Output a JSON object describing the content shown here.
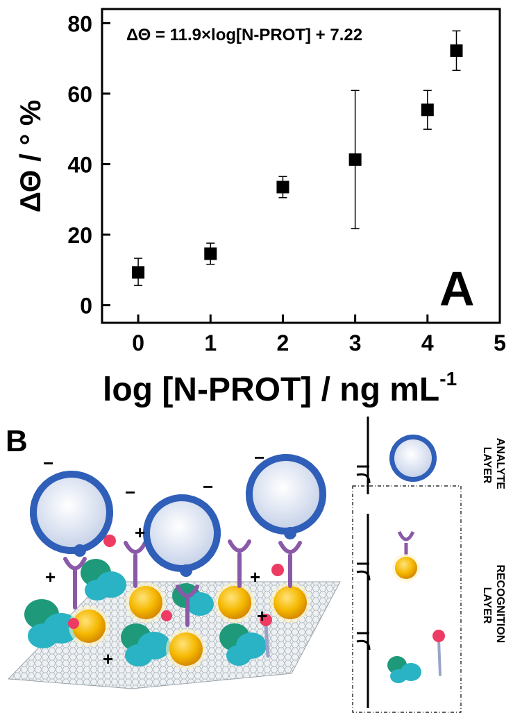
{
  "chart_data": {
    "type": "scatter",
    "x": [
      0,
      1,
      2,
      3,
      4,
      4.4
    ],
    "y": [
      9.3,
      14.6,
      33.5,
      41.3,
      55.4,
      72.2
    ],
    "yerr_low": [
      3.7,
      3.0,
      3.0,
      19.6,
      5.5,
      5.6
    ],
    "yerr_high": [
      4.0,
      3.0,
      3.0,
      19.6,
      5.5,
      5.6
    ],
    "xlim": [
      -0.5,
      5
    ],
    "ylim": [
      -5,
      84
    ],
    "xticks": [
      0,
      1,
      2,
      3,
      4,
      5
    ],
    "yticks": [
      0,
      20,
      40,
      60,
      80
    ],
    "xlabel": "log [N-PROT] / ng mL",
    "xlabel_superscript": "-1",
    "ylabel": "ΔΘ / ° %",
    "annotation": "ΔΘ = 11.9×log[N-PROT] + 7.22",
    "panel_label": "A",
    "marker": "filled-square",
    "grid": false
  },
  "schematic": {
    "panel_label": "B",
    "charges": [
      "−",
      "−",
      "−",
      "−",
      "+",
      "+",
      "+",
      "+",
      "+"
    ],
    "legend": {
      "analyte_label": [
        "ANALYTE",
        "LAYER"
      ],
      "recognition_label": [
        "RECOGNITION",
        "LAYER"
      ],
      "icons": [
        "virus-icon",
        "aptamer-nanoparticle-icon",
        "protein-probe-icon"
      ]
    }
  },
  "colors": {
    "virus_blue": "#2f5fb8",
    "virus_body": "#e6ebf5",
    "gold": "#f5b800",
    "receptor_purple": "#8a5aa8",
    "protein_teal": "#29b3c4",
    "protein_green": "#1e9a7a",
    "pink": "#ee3b63"
  }
}
